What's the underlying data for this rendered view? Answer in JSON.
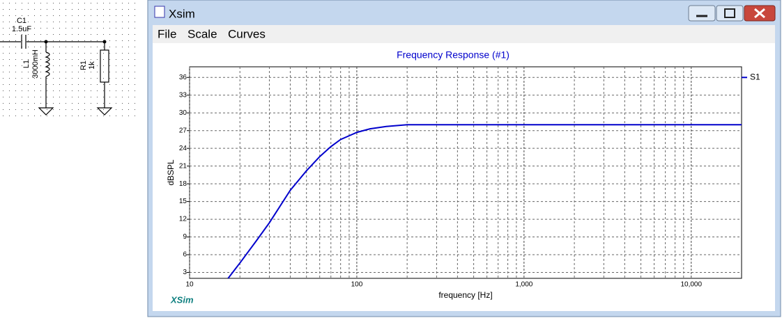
{
  "schematic": {
    "components": [
      {
        "name": "C1",
        "value": "1.5uF"
      },
      {
        "name": "L1",
        "value": "3000mH"
      },
      {
        "name": "R1",
        "value": "1k"
      }
    ]
  },
  "window": {
    "title": "Xsim",
    "menu": [
      "File",
      "Scale",
      "Curves"
    ]
  },
  "chart_data": {
    "type": "line",
    "title": "Frequency Response (#1)",
    "xlabel": "frequency [Hz]",
    "ylabel": "dBSPL",
    "annotation": "XSim",
    "xscale": "log",
    "grid": true,
    "legend": "top-right",
    "x": [
      17,
      20,
      25,
      30,
      40,
      50,
      60,
      70,
      80,
      100,
      120,
      150,
      200,
      500,
      1000,
      5000,
      20000
    ],
    "series": [
      {
        "name": "S1",
        "color": "#0000cc",
        "values": [
          2,
          4.6,
          8.3,
          11.4,
          16.9,
          20.2,
          22.6,
          24.3,
          25.5,
          26.7,
          27.3,
          27.7,
          28,
          28,
          28,
          28,
          28
        ]
      }
    ],
    "xlim": [
      10,
      20000
    ],
    "ylim": [
      2,
      37.8
    ],
    "xticks": [
      10,
      100,
      {
        "value": 1000,
        "label": "1,000"
      },
      {
        "value": 10000,
        "label": "10,000"
      }
    ],
    "minor_xticks": [
      20,
      30,
      40,
      50,
      60,
      70,
      80,
      90,
      200,
      300,
      400,
      500,
      600,
      700,
      800,
      900,
      2000,
      3000,
      4000,
      5000,
      6000,
      7000,
      8000,
      9000
    ],
    "yticks": [
      3,
      6,
      9,
      12,
      15,
      18,
      21,
      24,
      27,
      30,
      33,
      36
    ]
  }
}
